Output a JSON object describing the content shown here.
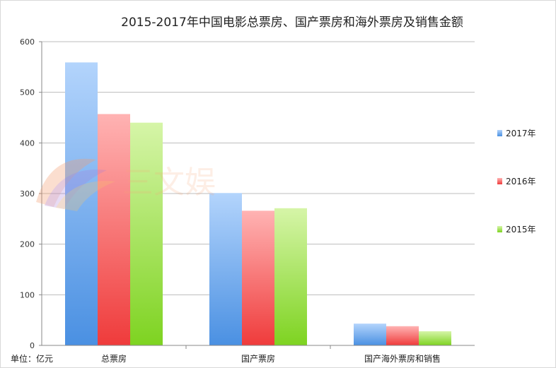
{
  "chart_data": {
    "type": "bar",
    "title": "2015-2017年中国电影总票房、国产票房和海外票房及销售金额",
    "unit_label": "单位：亿元",
    "categories": [
      "总票房",
      "国产票房",
      "国产海外票房和销售"
    ],
    "series": [
      {
        "name": "2017年",
        "values": [
          559,
          301,
          43
        ],
        "color": "#4a90e2",
        "color_light": "#b3d4fc"
      },
      {
        "name": "2016年",
        "values": [
          457,
          266,
          38
        ],
        "color": "#ef3b3b",
        "color_light": "#ffb3b3"
      },
      {
        "name": "2015年",
        "values": [
          440,
          271,
          28
        ],
        "color": "#7ed321",
        "color_light": "#d6f5a8"
      }
    ],
    "ylim": [
      0,
      600
    ],
    "yticks": [
      0,
      100,
      200,
      300,
      400,
      500,
      600
    ],
    "grid": true,
    "legend_position": "right"
  },
  "watermark": {
    "text": "三文娱",
    "icon": "sanwenyu-logo-icon"
  }
}
